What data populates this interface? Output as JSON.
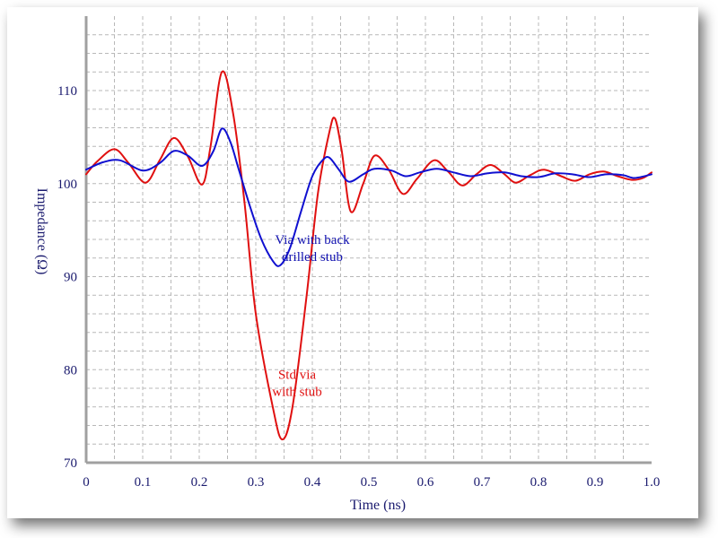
{
  "chart_data": {
    "type": "line",
    "xlabel": "Time (ns)",
    "ylabel": "Impedance (Ω)",
    "xlim": [
      0,
      1.0
    ],
    "ylim": [
      70,
      118
    ],
    "x_ticks": [
      "0",
      "0.1",
      "0.2",
      "0.3",
      "0.4",
      "0.5",
      "0.6",
      "0.7",
      "0.8",
      "0.9",
      "1.0"
    ],
    "y_ticks": [
      "70",
      "80",
      "90",
      "100",
      "110"
    ],
    "grid": true,
    "series": [
      {
        "name": "Std via with stub",
        "color": "#e01010",
        "points": [
          [
            0.0,
            101.0
          ],
          [
            0.02,
            102.4
          ],
          [
            0.05,
            103.7
          ],
          [
            0.075,
            102.2
          ],
          [
            0.105,
            100.1
          ],
          [
            0.13,
            102.5
          ],
          [
            0.155,
            104.9
          ],
          [
            0.18,
            102.9
          ],
          [
            0.205,
            99.9
          ],
          [
            0.22,
            104.0
          ],
          [
            0.24,
            112.0
          ],
          [
            0.26,
            107.5
          ],
          [
            0.28,
            98.0
          ],
          [
            0.3,
            86.0
          ],
          [
            0.33,
            76.0
          ],
          [
            0.347,
            72.5
          ],
          [
            0.365,
            76.0
          ],
          [
            0.39,
            88.0
          ],
          [
            0.41,
            99.0
          ],
          [
            0.43,
            105.5
          ],
          [
            0.44,
            107.0
          ],
          [
            0.452,
            103.5
          ],
          [
            0.468,
            97.0
          ],
          [
            0.49,
            100.0
          ],
          [
            0.51,
            103.0
          ],
          [
            0.535,
            101.5
          ],
          [
            0.56,
            98.9
          ],
          [
            0.585,
            100.5
          ],
          [
            0.615,
            102.5
          ],
          [
            0.64,
            101.3
          ],
          [
            0.665,
            99.8
          ],
          [
            0.69,
            101.0
          ],
          [
            0.715,
            102.0
          ],
          [
            0.74,
            101.0
          ],
          [
            0.76,
            100.1
          ],
          [
            0.785,
            100.9
          ],
          [
            0.81,
            101.5
          ],
          [
            0.84,
            100.8
          ],
          [
            0.865,
            100.3
          ],
          [
            0.89,
            101.0
          ],
          [
            0.915,
            101.3
          ],
          [
            0.94,
            100.8
          ],
          [
            0.965,
            100.4
          ],
          [
            0.985,
            100.6
          ],
          [
            1.0,
            101.2
          ]
        ]
      },
      {
        "name": "Via with back drilled stub",
        "color": "#1010d0",
        "points": [
          [
            0.0,
            101.5
          ],
          [
            0.03,
            102.3
          ],
          [
            0.06,
            102.5
          ],
          [
            0.1,
            101.4
          ],
          [
            0.13,
            102.2
          ],
          [
            0.155,
            103.5
          ],
          [
            0.18,
            103.0
          ],
          [
            0.205,
            101.9
          ],
          [
            0.225,
            103.5
          ],
          [
            0.24,
            105.9
          ],
          [
            0.255,
            104.5
          ],
          [
            0.27,
            101.5
          ],
          [
            0.29,
            97.5
          ],
          [
            0.31,
            94.0
          ],
          [
            0.33,
            91.7
          ],
          [
            0.343,
            91.2
          ],
          [
            0.36,
            93.0
          ],
          [
            0.38,
            97.0
          ],
          [
            0.4,
            100.8
          ],
          [
            0.418,
            102.5
          ],
          [
            0.43,
            102.8
          ],
          [
            0.447,
            101.5
          ],
          [
            0.465,
            100.2
          ],
          [
            0.49,
            101.0
          ],
          [
            0.51,
            101.6
          ],
          [
            0.54,
            101.4
          ],
          [
            0.565,
            100.8
          ],
          [
            0.59,
            101.2
          ],
          [
            0.62,
            101.6
          ],
          [
            0.65,
            101.2
          ],
          [
            0.68,
            100.8
          ],
          [
            0.71,
            101.1
          ],
          [
            0.74,
            101.2
          ],
          [
            0.77,
            100.8
          ],
          [
            0.8,
            100.7
          ],
          [
            0.83,
            101.1
          ],
          [
            0.86,
            101.0
          ],
          [
            0.89,
            100.7
          ],
          [
            0.92,
            101.0
          ],
          [
            0.95,
            100.9
          ],
          [
            0.97,
            100.6
          ],
          [
            1.0,
            101.0
          ]
        ]
      }
    ],
    "annotations": [
      {
        "line1": "Via with back",
        "line2": "drilled stub",
        "color": "#1010b0",
        "x": 0.4,
        "y": 93.5
      },
      {
        "line1": "Std via",
        "line2": "with stub",
        "color": "#e01010",
        "x": 0.373,
        "y": 79.0
      }
    ]
  },
  "colors": {
    "axis_text": "#1a1a6e",
    "grid": "#b8b8b8",
    "frame": "#a0a0a0"
  }
}
